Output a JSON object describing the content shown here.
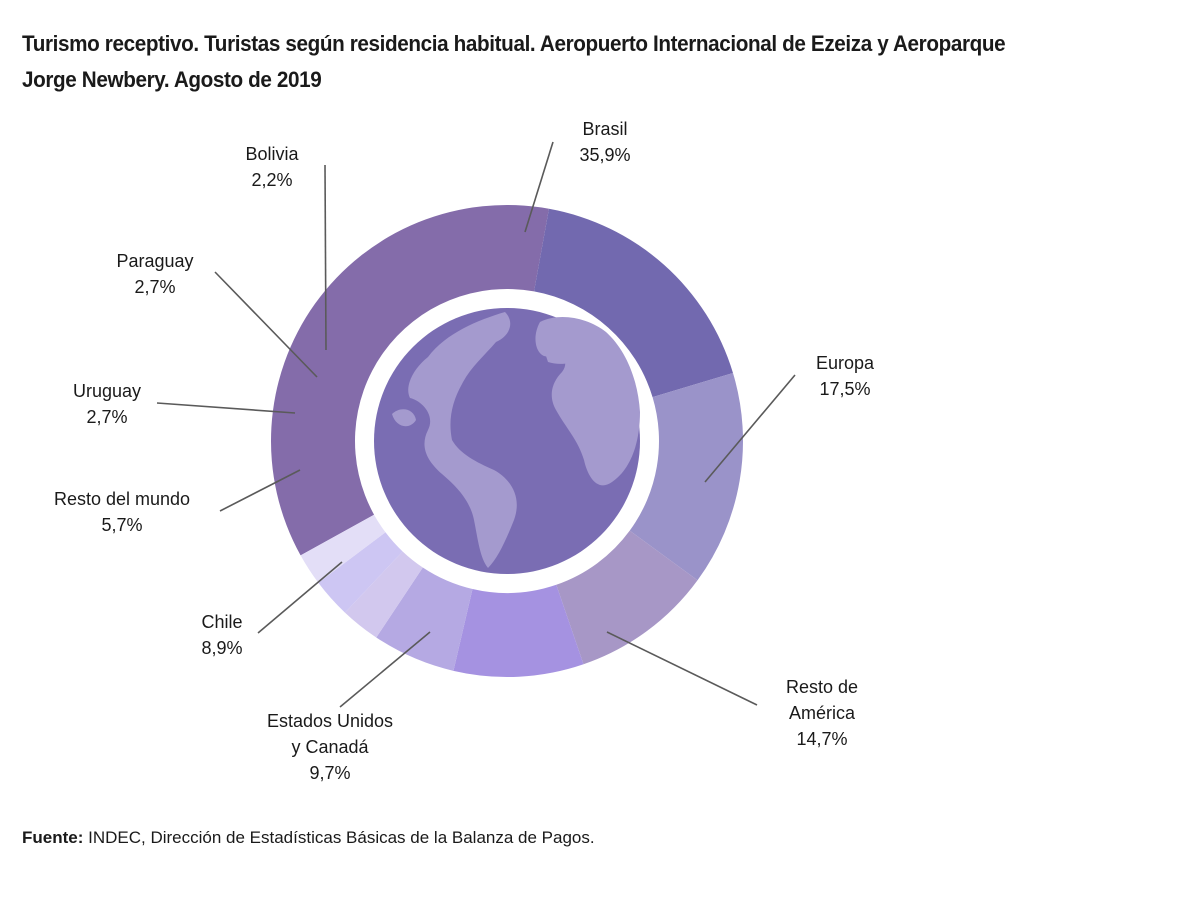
{
  "title_lines": [
    "Turismo receptivo. Turistas según residencia habitual. Aeropuerto Internacional de Ezeiza y Aeroparque",
    "Jorge Newbery. Agosto de 2019"
  ],
  "source": {
    "label": "Fuente:",
    "text": " INDEC, Dirección de Estadísticas Básicas de la Balanza de Pagos."
  },
  "chart_data": {
    "type": "pie",
    "variant": "donut",
    "center_graphic": "globe-icon",
    "legend": "none",
    "slices": [
      {
        "name": "Brasil",
        "label_lines": [
          "Brasil"
        ],
        "value": 35.9,
        "value_label": "35,9%",
        "color": "#846CAA"
      },
      {
        "name": "Europa",
        "label_lines": [
          "Europa"
        ],
        "value": 17.5,
        "value_label": "17,5%",
        "color": "#7269AF"
      },
      {
        "name": "Resto de América",
        "label_lines": [
          "Resto de",
          "América"
        ],
        "value": 14.7,
        "value_label": "14,7%",
        "color": "#9A93C9"
      },
      {
        "name": "Estados Unidos y Canadá",
        "label_lines": [
          "Estados Unidos",
          "y Canadá"
        ],
        "value": 9.7,
        "value_label": "9,7%",
        "color": "#A797C6"
      },
      {
        "name": "Chile",
        "label_lines": [
          "Chile"
        ],
        "value": 8.9,
        "value_label": "8,9%",
        "color": "#A592E1"
      },
      {
        "name": "Resto del mundo",
        "label_lines": [
          "Resto del mundo"
        ],
        "value": 5.7,
        "value_label": "5,7%",
        "color": "#B5A9E3"
      },
      {
        "name": "Uruguay",
        "label_lines": [
          "Uruguay"
        ],
        "value": 2.7,
        "value_label": "2,7%",
        "color": "#D2C8EE"
      },
      {
        "name": "Paraguay",
        "label_lines": [
          "Paraguay"
        ],
        "value": 2.7,
        "value_label": "2,7%",
        "color": "#CDC6F3"
      },
      {
        "name": "Bolivia",
        "label_lines": [
          "Bolivia"
        ],
        "value": 2.2,
        "value_label": "2,2%",
        "color": "#E3DEF7"
      }
    ]
  }
}
